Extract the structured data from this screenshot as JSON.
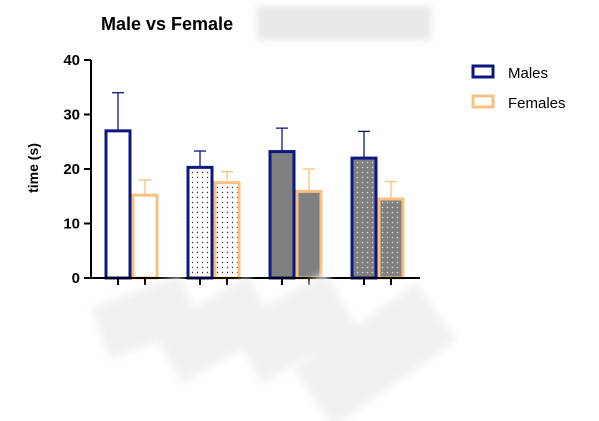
{
  "chart_data": {
    "type": "bar",
    "title": "Male vs Female",
    "ylabel": "time (s)",
    "xlabel": "",
    "ylim": [
      0,
      40
    ],
    "yticks": [
      0,
      10,
      20,
      30,
      40
    ],
    "categories": [
      "",
      "",
      "",
      ""
    ],
    "fills": [
      "white",
      "dotted",
      "gray",
      "dotted-gray"
    ],
    "series": [
      {
        "name": "Males",
        "values": [
          27,
          20.3,
          23.2,
          22
        ],
        "errors": [
          7,
          3,
          4.3,
          4.9
        ],
        "color": "#0d1782"
      },
      {
        "name": "Females",
        "values": [
          15.2,
          17.5,
          15.9,
          14.5
        ],
        "errors": [
          2.8,
          2,
          4.1,
          3.2
        ],
        "color": "#f9c17f"
      }
    ],
    "grid": false,
    "legend_position": "top-right"
  },
  "colors": {
    "males_outline": "#0d1782",
    "females_outline": "#f9c17f",
    "gray_fill": "#808080",
    "axis": "#000000"
  }
}
